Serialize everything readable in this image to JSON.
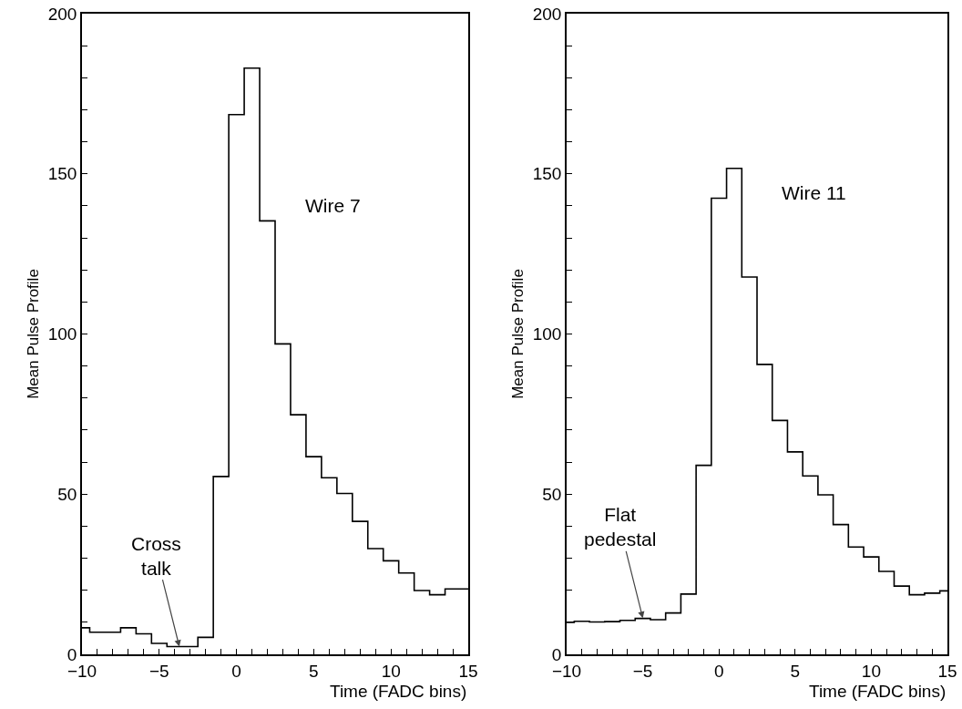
{
  "chart_data": [
    {
      "type": "histogram",
      "ylabel": "Mean Pulse Profile",
      "xlabel": "Time (FADC bins)",
      "color": "#000000",
      "bins": [
        -10,
        -9.5,
        -8.5,
        -7.5,
        -6.5,
        -5.5,
        -4.5,
        -3.5,
        -2.5,
        -1.5,
        -0.5,
        0.5,
        1.5,
        2.5,
        3.5,
        4.5,
        5.5,
        6.5,
        7.5,
        8.5,
        9.5,
        10.5,
        11.5,
        12.5,
        13.5,
        14.5,
        15
      ],
      "values": [
        8.3,
        6.9,
        6.9,
        8.3,
        6.4,
        3.4,
        2.4,
        2.4,
        5.3,
        55.5,
        168.5,
        183,
        135.3,
        96.9,
        74.8,
        61.7,
        55.1,
        50.2,
        41.5,
        33,
        29.2,
        25.4,
        19.9,
        18.6,
        20.4,
        20.4
      ],
      "xlim": [
        -10,
        15
      ],
      "xticks": [
        -10,
        {
          "value": -9,
          "label": null
        },
        {
          "value": -8,
          "label": null
        },
        {
          "value": -7,
          "label": null
        },
        {
          "value": -6,
          "label": null
        },
        -5,
        {
          "value": -4,
          "label": null
        },
        {
          "value": -3,
          "label": null
        },
        {
          "value": -2,
          "label": null
        },
        {
          "value": -1,
          "label": null
        },
        0,
        {
          "value": 1,
          "label": null
        },
        {
          "value": 2,
          "label": null
        },
        {
          "value": 3,
          "label": null
        },
        {
          "value": 4,
          "label": null
        },
        5,
        {
          "value": 6,
          "label": null
        },
        {
          "value": 7,
          "label": null
        },
        {
          "value": 8,
          "label": null
        },
        {
          "value": 9,
          "label": null
        },
        10,
        {
          "value": 11,
          "label": null
        },
        {
          "value": 12,
          "label": null
        },
        {
          "value": 13,
          "label": null
        },
        {
          "value": 14,
          "label": null
        },
        15
      ],
      "ylim": [
        0,
        200
      ],
      "yticks": [
        0,
        {
          "value": 10,
          "label": null
        },
        {
          "value": 20,
          "label": null
        },
        {
          "value": 30,
          "label": null
        },
        {
          "value": 40,
          "label": null
        },
        50,
        {
          "value": 60,
          "label": null
        },
        {
          "value": 70,
          "label": null
        },
        {
          "value": 80,
          "label": null
        },
        {
          "value": 90,
          "label": null
        },
        100,
        {
          "value": 110,
          "label": null
        },
        {
          "value": 120,
          "label": null
        },
        {
          "value": 130,
          "label": null
        },
        {
          "value": 140,
          "label": null
        },
        150,
        {
          "value": 160,
          "label": null
        },
        {
          "value": 170,
          "label": null
        },
        {
          "value": 180,
          "label": null
        },
        {
          "value": 190,
          "label": null
        },
        200
      ],
      "annotations": [
        "Wire 7",
        {
          "text": "Cross\ntalk",
          "x": -3.7,
          "y": 2.4
        }
      ]
    },
    {
      "type": "histogram",
      "ylabel": "Mean Pulse Profile",
      "xlabel": "Time (FADC bins)",
      "color": "#000000",
      "bins": [
        -10,
        -9.5,
        -8.5,
        -7.5,
        -6.5,
        -5.5,
        -4.5,
        -3.5,
        -2.5,
        -1.5,
        -0.5,
        0.5,
        1.5,
        2.5,
        3.5,
        4.5,
        5.5,
        6.5,
        7.5,
        8.5,
        9.5,
        10.5,
        11.5,
        12.5,
        13.5,
        14.5,
        15
      ],
      "values": [
        10,
        10.3,
        10.1,
        10.2,
        10.6,
        11.2,
        10.8,
        12.9,
        18.8,
        59,
        142.4,
        151.7,
        117.8,
        90.5,
        73,
        63.2,
        55.7,
        49.8,
        40.5,
        33.5,
        30.4,
        25.9,
        21.3,
        18.6,
        19.1,
        19.8
      ],
      "xlim": [
        -10,
        15
      ],
      "xticks": [
        -10,
        {
          "value": -9,
          "label": null
        },
        {
          "value": -8,
          "label": null
        },
        {
          "value": -7,
          "label": null
        },
        {
          "value": -6,
          "label": null
        },
        -5,
        {
          "value": -4,
          "label": null
        },
        {
          "value": -3,
          "label": null
        },
        {
          "value": -2,
          "label": null
        },
        {
          "value": -1,
          "label": null
        },
        0,
        {
          "value": 1,
          "label": null
        },
        {
          "value": 2,
          "label": null
        },
        {
          "value": 3,
          "label": null
        },
        {
          "value": 4,
          "label": null
        },
        5,
        {
          "value": 6,
          "label": null
        },
        {
          "value": 7,
          "label": null
        },
        {
          "value": 8,
          "label": null
        },
        {
          "value": 9,
          "label": null
        },
        10,
        {
          "value": 11,
          "label": null
        },
        {
          "value": 12,
          "label": null
        },
        {
          "value": 13,
          "label": null
        },
        {
          "value": 14,
          "label": null
        },
        15
      ],
      "ylim": [
        0,
        200
      ],
      "yticks": [
        0,
        {
          "value": 10,
          "label": null
        },
        {
          "value": 20,
          "label": null
        },
        {
          "value": 30,
          "label": null
        },
        {
          "value": 40,
          "label": null
        },
        50,
        {
          "value": 60,
          "label": null
        },
        {
          "value": 70,
          "label": null
        },
        {
          "value": 80,
          "label": null
        },
        {
          "value": 90,
          "label": null
        },
        100,
        {
          "value": 110,
          "label": null
        },
        {
          "value": 120,
          "label": null
        },
        {
          "value": 130,
          "label": null
        },
        {
          "value": 140,
          "label": null
        },
        150,
        {
          "value": 160,
          "label": null
        },
        {
          "value": 170,
          "label": null
        },
        {
          "value": 180,
          "label": null
        },
        {
          "value": 190,
          "label": null
        },
        200
      ],
      "annotations": [
        "Wire 11",
        {
          "text": "Flat\npedestal",
          "x": -5,
          "y": 11.3
        }
      ]
    }
  ]
}
